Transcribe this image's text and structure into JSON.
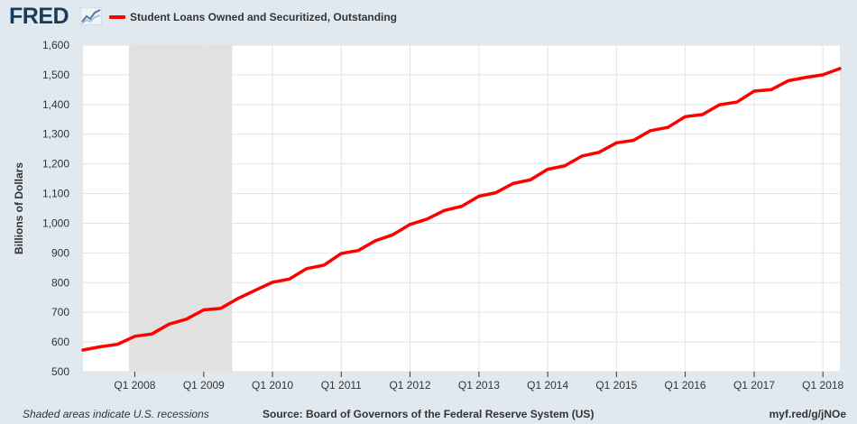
{
  "logo": {
    "text": "FRED",
    "icon": "fred-chart-icon"
  },
  "colors": {
    "series": "#ff0000",
    "plot_bg": "#ffffff",
    "page_bg": "#e1e9f0",
    "recession": "#e1e1e1",
    "grid": "#e4e4e4"
  },
  "chart_data": {
    "type": "line",
    "title": "",
    "xlabel": "",
    "ylabel": "Billions of Dollars",
    "legend": "top-left",
    "grid": true,
    "ylim": [
      500,
      1600
    ],
    "yticks": [
      "500",
      "600",
      "700",
      "800",
      "900",
      "1,000",
      "1,100",
      "1,200",
      "1,300",
      "1,400",
      "1,500",
      "1,600"
    ],
    "xticks": [
      "Q1 2008",
      "Q1 2009",
      "Q1 2010",
      "Q1 2011",
      "Q1 2012",
      "Q1 2013",
      "Q1 2014",
      "Q1 2015",
      "Q1 2016",
      "Q1 2017",
      "Q1 2018"
    ],
    "xlim": [
      "2007-04-01",
      "2018-04-01"
    ],
    "x": [
      "2007-04-01",
      "2007-07-01",
      "2007-10-01",
      "2008-01-01",
      "2008-04-01",
      "2008-07-01",
      "2008-10-01",
      "2009-01-01",
      "2009-04-01",
      "2009-07-01",
      "2009-10-01",
      "2010-01-01",
      "2010-04-01",
      "2010-07-01",
      "2010-10-01",
      "2011-01-01",
      "2011-04-01",
      "2011-07-01",
      "2011-10-01",
      "2012-01-01",
      "2012-04-01",
      "2012-07-01",
      "2012-10-01",
      "2013-01-01",
      "2013-04-01",
      "2013-07-01",
      "2013-10-01",
      "2014-01-01",
      "2014-04-01",
      "2014-07-01",
      "2014-10-01",
      "2015-01-01",
      "2015-04-01",
      "2015-07-01",
      "2015-10-01",
      "2016-01-01",
      "2016-04-01",
      "2016-07-01",
      "2016-10-01",
      "2017-01-01",
      "2017-04-01",
      "2017-07-01",
      "2017-10-01",
      "2018-01-01",
      "2018-04-01"
    ],
    "series": [
      {
        "name": "Student Loans Owned and Securitized, Outstanding",
        "values": [
          573,
          584,
          592,
          619,
          627,
          660,
          677,
          708,
          713,
          746,
          774,
          801,
          812,
          847,
          859,
          898,
          908,
          941,
          961,
          996,
          1014,
          1043,
          1057,
          1091,
          1103,
          1134,
          1146,
          1182,
          1193,
          1226,
          1239,
          1271,
          1279,
          1312,
          1323,
          1359,
          1366,
          1399,
          1408,
          1445,
          1450,
          1480,
          1491,
          1500,
          1521
        ]
      }
    ],
    "recessions": [
      {
        "start": "2007-12-01",
        "end": "2009-06-01"
      }
    ]
  },
  "footer": {
    "note": "Shaded areas indicate U.S. recessions",
    "source": "Source: Board of Governors of the Federal Reserve System (US)",
    "link": "myf.red/g/jNOe"
  }
}
